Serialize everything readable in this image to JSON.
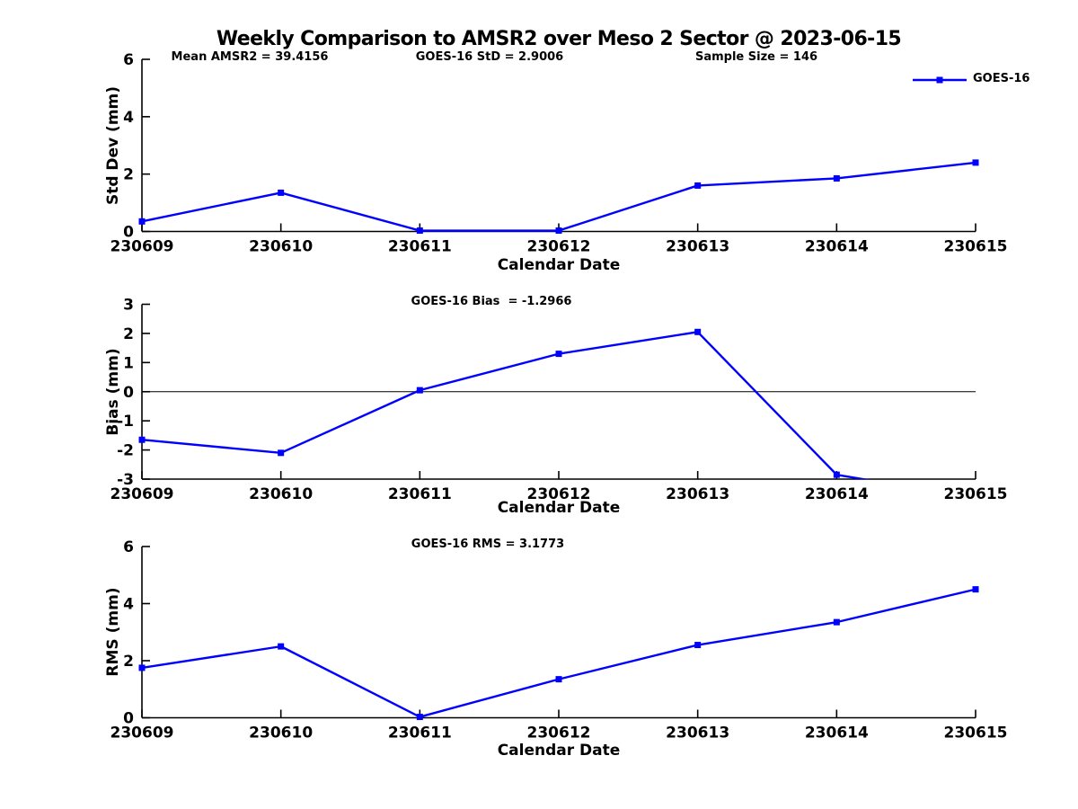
{
  "title": "Weekly Comparison to AMSR2 over Meso 2 Sector @ 2023-06-15",
  "legend": {
    "label": "GOES-16",
    "position": "top-right"
  },
  "colors": {
    "series": "#0000FF",
    "axis": "#000000",
    "background": "#FFFFFF"
  },
  "chart_data": [
    {
      "type": "line",
      "id": "std-dev",
      "annotations": [
        "Mean AMSR2 = 39.4156",
        "GOES-16 StD = 2.9006",
        "Sample Size = 146"
      ],
      "categories": [
        "230609",
        "230610",
        "230611",
        "230612",
        "230613",
        "230614",
        "230615"
      ],
      "series": [
        {
          "name": "GOES-16",
          "values": [
            0.35,
            1.35,
            0.03,
            0.03,
            1.6,
            1.85,
            2.4
          ]
        }
      ],
      "xlabel": "Calendar Date",
      "ylabel": "Std Dev (mm)",
      "ylim": [
        0,
        6
      ],
      "yticks": [
        0,
        2,
        4,
        6
      ],
      "grid": false
    },
    {
      "type": "line",
      "id": "bias",
      "annotations": [
        "GOES-16 Bias  = -1.2966"
      ],
      "categories": [
        "230609",
        "230610",
        "230611",
        "230612",
        "230613",
        "230614",
        "230615"
      ],
      "series": [
        {
          "name": "GOES-16",
          "values": [
            -1.65,
            -2.1,
            0.05,
            1.3,
            2.05,
            -2.85,
            -3.65
          ]
        }
      ],
      "last_point_clipped": true,
      "zero_line": true,
      "clip_to_axes": true,
      "xlabel": "Calendar Date",
      "ylabel": "Bias (mm)",
      "ylim": [
        -3,
        3
      ],
      "yticks": [
        3,
        2,
        1,
        0,
        -1,
        -2,
        -3
      ],
      "grid": false
    },
    {
      "type": "line",
      "id": "rms",
      "annotations": [
        "GOES-16 RMS = 3.1773"
      ],
      "categories": [
        "230609",
        "230610",
        "230611",
        "230612",
        "230613",
        "230614",
        "230615"
      ],
      "series": [
        {
          "name": "GOES-16",
          "values": [
            1.75,
            2.5,
            0.03,
            1.35,
            2.55,
            3.35,
            4.5
          ]
        }
      ],
      "xlabel": "Calendar Date",
      "ylabel": "RMS (mm)",
      "ylim": [
        0,
        6
      ],
      "yticks": [
        0,
        2,
        4,
        6
      ],
      "grid": false
    }
  ]
}
